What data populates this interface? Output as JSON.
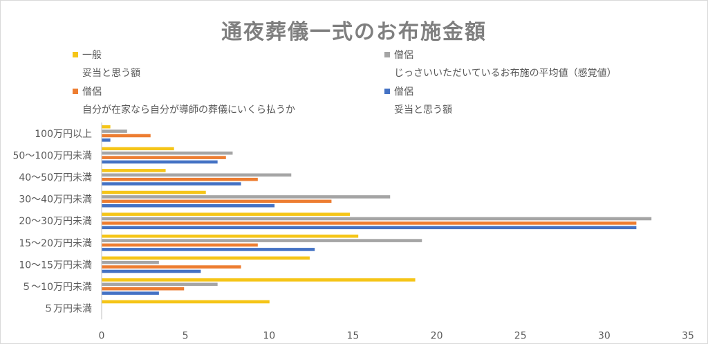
{
  "chart_data": {
    "type": "bar",
    "orientation": "horizontal",
    "title": "通夜葬儀一式のお布施金額",
    "categories": [
      "100万円以上",
      "50～100万円未満",
      "40～50万円未満",
      "30～40万円未満",
      "20～30万円未満",
      "15～20万円未満",
      "10～15万円未満",
      "５～10万円未満",
      "５万円未満"
    ],
    "xlim": [
      0,
      35
    ],
    "xticks": [
      "0",
      "5",
      "10",
      "15",
      "20",
      "25",
      "30",
      "35"
    ],
    "grid": false,
    "legend_position": "top",
    "series": [
      {
        "name_line1": "一般",
        "name_line2": "妥当と思う額",
        "color": "#f5c518",
        "values": [
          0.5,
          4.3,
          3.8,
          6.2,
          14.8,
          15.3,
          12.4,
          18.7,
          10.0
        ]
      },
      {
        "name_line1": "僧侶",
        "name_line2": "じっさいいただいているお布施の平均値（感覚値）",
        "color": "#a5a5a5",
        "values": [
          1.5,
          7.8,
          11.3,
          17.2,
          32.8,
          19.1,
          3.4,
          6.9,
          0
        ]
      },
      {
        "name_line1": "僧侶",
        "name_line2": "自分が在家なら自分が導師の葬儀にいくら払うか",
        "color": "#ed7d31",
        "values": [
          2.9,
          7.4,
          9.3,
          13.7,
          31.9,
          9.3,
          8.3,
          4.9,
          0
        ]
      },
      {
        "name_line1": "僧侶",
        "name_line2": "妥当と思う額",
        "color": "#4472c4",
        "values": [
          0.5,
          6.9,
          8.3,
          10.3,
          31.9,
          12.7,
          5.9,
          3.4,
          0
        ]
      }
    ]
  }
}
